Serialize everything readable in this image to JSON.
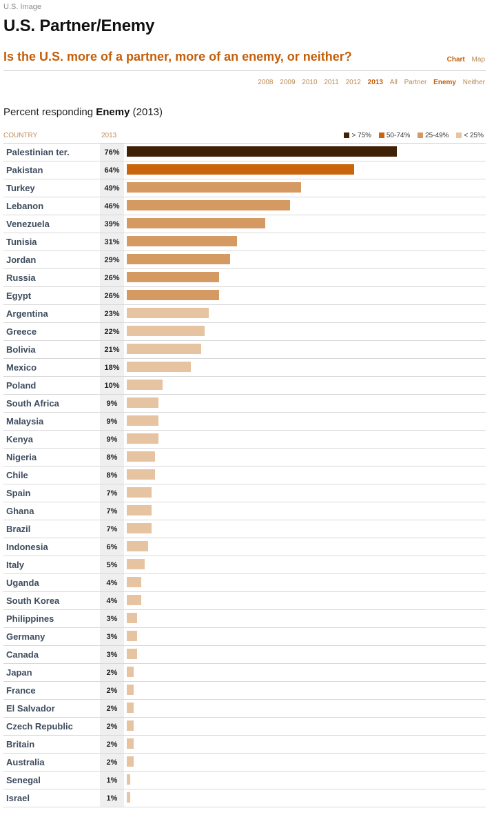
{
  "breadcrumb": "U.S. Image",
  "title": "U.S. Partner/Enemy",
  "question": "Is the U.S. more of a partner, more of an enemy, or neither?",
  "view_toggle": [
    {
      "label": "Chart",
      "active": true
    },
    {
      "label": "Map",
      "active": false
    }
  ],
  "filters": [
    {
      "label": "2008",
      "active": false
    },
    {
      "label": "2009",
      "active": false
    },
    {
      "label": "2010",
      "active": false
    },
    {
      "label": "2011",
      "active": false
    },
    {
      "label": "2012",
      "active": false
    },
    {
      "label": "2013",
      "active": true
    },
    {
      "label": "All",
      "active": false
    },
    {
      "label": "Partner",
      "active": false
    },
    {
      "label": "Enemy",
      "active": true
    },
    {
      "label": "Neither",
      "active": false
    }
  ],
  "subtitle": {
    "prefix": "Percent responding ",
    "emphasis": "Enemy",
    "suffix": " (2013)"
  },
  "columns": {
    "country": "COUNTRY",
    "year": "2013"
  },
  "legend": [
    {
      "label": "> 75%",
      "color": "#3f2106"
    },
    {
      "label": "50-74%",
      "color": "#c9650a"
    },
    {
      "label": "25-49%",
      "color": "#d59a62"
    },
    {
      "label": "< 25%",
      "color": "#e6c4a2"
    }
  ],
  "chart_data": {
    "type": "bar",
    "orientation": "horizontal",
    "title": "Percent responding Enemy (2013)",
    "xlabel": "",
    "ylabel": "",
    "xlim": [
      0,
      100
    ],
    "categories": [
      "Palestinian ter.",
      "Pakistan",
      "Turkey",
      "Lebanon",
      "Venezuela",
      "Tunisia",
      "Jordan",
      "Russia",
      "Egypt",
      "Argentina",
      "Greece",
      "Bolivia",
      "Mexico",
      "Poland",
      "South Africa",
      "Malaysia",
      "Kenya",
      "Nigeria",
      "Chile",
      "Spain",
      "Ghana",
      "Brazil",
      "Indonesia",
      "Italy",
      "Uganda",
      "South Korea",
      "Philippines",
      "Germany",
      "Canada",
      "Japan",
      "France",
      "El Salvador",
      "Czech Republic",
      "Britain",
      "Australia",
      "Senegal",
      "Israel"
    ],
    "values": [
      76,
      64,
      49,
      46,
      39,
      31,
      29,
      26,
      26,
      23,
      22,
      21,
      18,
      10,
      9,
      9,
      9,
      8,
      8,
      7,
      7,
      7,
      6,
      5,
      4,
      4,
      3,
      3,
      3,
      2,
      2,
      2,
      2,
      2,
      2,
      1,
      1
    ],
    "value_labels": [
      "76%",
      "64%",
      "49%",
      "46%",
      "39%",
      "31%",
      "29%",
      "26%",
      "26%",
      "23%",
      "22%",
      "21%",
      "18%",
      "10%",
      "9%",
      "9%",
      "9%",
      "8%",
      "8%",
      "7%",
      "7%",
      "7%",
      "6%",
      "5%",
      "4%",
      "4%",
      "3%",
      "3%",
      "3%",
      "2%",
      "2%",
      "2%",
      "2%",
      "2%",
      "2%",
      "1%",
      "1%"
    ]
  }
}
